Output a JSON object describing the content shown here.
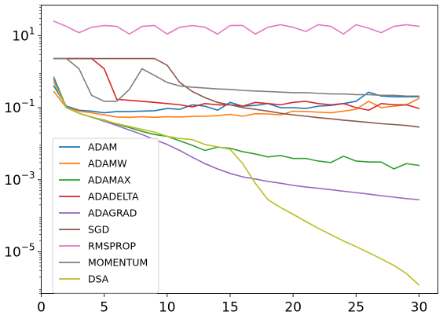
{
  "chart_data": {
    "type": "line",
    "title": "",
    "xlabel": "",
    "ylabel": "",
    "x": [
      1,
      2,
      3,
      4,
      5,
      6,
      7,
      8,
      9,
      10,
      11,
      12,
      13,
      14,
      15,
      16,
      17,
      18,
      19,
      20,
      21,
      22,
      23,
      24,
      25,
      26,
      27,
      28,
      29,
      30
    ],
    "xlim": [
      0,
      31.5
    ],
    "ylim": [
      7e-07,
      70
    ],
    "yscale": "log",
    "xticks": [
      0,
      5,
      10,
      15,
      20,
      25,
      30
    ],
    "yticks": [
      1e-05,
      0.001,
      0.1,
      10
    ],
    "ytick_labels": [
      {
        "base": "10",
        "exp": "−5"
      },
      {
        "base": "10",
        "exp": "−3"
      },
      {
        "base": "10",
        "exp": "−1"
      },
      {
        "base": "10",
        "exp": "1"
      }
    ],
    "grid": false,
    "legend_position": "lower-left",
    "series": [
      {
        "name": "ADAM",
        "color": "#1f77b4",
        "values": [
          0.4,
          0.11,
          0.085,
          0.08,
          0.072,
          0.078,
          0.078,
          0.08,
          0.082,
          0.095,
          0.09,
          0.12,
          0.11,
          0.085,
          0.14,
          0.11,
          0.115,
          0.13,
          0.1,
          0.1,
          0.095,
          0.11,
          0.115,
          0.13,
          0.15,
          0.27,
          0.21,
          0.2,
          0.2,
          0.2
        ]
      },
      {
        "name": "ADAMW",
        "color": "#ff7f0e",
        "values": [
          0.28,
          0.1,
          0.08,
          0.072,
          0.063,
          0.055,
          0.054,
          0.056,
          0.054,
          0.056,
          0.055,
          0.057,
          0.058,
          0.06,
          0.065,
          0.058,
          0.068,
          0.067,
          0.063,
          0.08,
          0.078,
          0.075,
          0.072,
          0.08,
          0.09,
          0.15,
          0.1,
          0.11,
          0.12,
          0.18
        ]
      },
      {
        "name": "ADAMAX",
        "color": "#2ca02c",
        "values": [
          0.7,
          0.1,
          0.07,
          0.055,
          0.045,
          0.035,
          0.028,
          0.022,
          0.018,
          0.016,
          0.012,
          0.009,
          0.0065,
          0.008,
          0.0075,
          0.006,
          0.0052,
          0.0043,
          0.0047,
          0.0039,
          0.0039,
          0.0033,
          0.003,
          0.0045,
          0.0033,
          0.0031,
          0.0031,
          0.002,
          0.0028,
          0.0025
        ]
      },
      {
        "name": "ADADELTA",
        "color": "#d62728",
        "values": [
          2.3,
          2.3,
          2.3,
          2.3,
          1.2,
          0.17,
          0.16,
          0.15,
          0.14,
          0.13,
          0.12,
          0.105,
          0.13,
          0.12,
          0.12,
          0.11,
          0.14,
          0.13,
          0.12,
          0.14,
          0.15,
          0.13,
          0.12,
          0.13,
          0.1,
          0.085,
          0.13,
          0.12,
          0.12,
          0.095
        ]
      },
      {
        "name": "ADAGRAD",
        "color": "#9467bd",
        "values": [
          0.6,
          0.1,
          0.07,
          0.054,
          0.042,
          0.032,
          0.024,
          0.018,
          0.013,
          0.0095,
          0.0065,
          0.0042,
          0.0028,
          0.002,
          0.0015,
          0.0012,
          0.00105,
          0.0009,
          0.0008,
          0.0007,
          0.00063,
          0.00058,
          0.00053,
          0.00048,
          0.00044,
          0.0004,
          0.00036,
          0.00033,
          0.0003,
          0.00028
        ]
      },
      {
        "name": "SGD",
        "color": "#8c564b",
        "values": [
          2.3,
          2.3,
          2.3,
          2.3,
          2.3,
          2.3,
          2.3,
          2.3,
          2.3,
          1.5,
          0.5,
          0.28,
          0.19,
          0.14,
          0.12,
          0.1,
          0.09,
          0.08,
          0.07,
          0.063,
          0.058,
          0.053,
          0.049,
          0.045,
          0.042,
          0.039,
          0.036,
          0.034,
          0.032,
          0.029
        ]
      },
      {
        "name": "RMSPROP",
        "color": "#e377c2",
        "values": [
          25,
          18,
          12,
          17,
          19,
          18,
          11,
          18,
          19,
          11,
          17,
          19,
          17,
          11,
          19,
          19,
          11,
          17,
          20,
          17,
          13,
          20,
          18,
          11,
          20,
          16,
          12,
          18,
          20,
          18
        ]
      },
      {
        "name": "MOMENTUM",
        "color": "#7f7f7f",
        "values": [
          2.3,
          2.3,
          1.2,
          0.22,
          0.15,
          0.15,
          0.32,
          1.2,
          0.78,
          0.5,
          0.4,
          0.37,
          0.35,
          0.33,
          0.32,
          0.3,
          0.29,
          0.28,
          0.27,
          0.26,
          0.26,
          0.25,
          0.24,
          0.24,
          0.23,
          0.23,
          0.22,
          0.22,
          0.21,
          0.21
        ]
      },
      {
        "name": "DSA",
        "color": "#bcbd22",
        "values": [
          0.5,
          0.1,
          0.07,
          0.055,
          0.044,
          0.036,
          0.03,
          0.025,
          0.021,
          0.016,
          0.014,
          0.013,
          0.0095,
          0.0082,
          0.007,
          0.0028,
          0.0008,
          0.00028,
          0.00017,
          0.00011,
          7e-05,
          4.5e-05,
          3e-05,
          2e-05,
          1.4e-05,
          9.5e-06,
          6.4e-06,
          4.2e-06,
          2.5e-06,
          1.2e-06
        ]
      }
    ]
  }
}
